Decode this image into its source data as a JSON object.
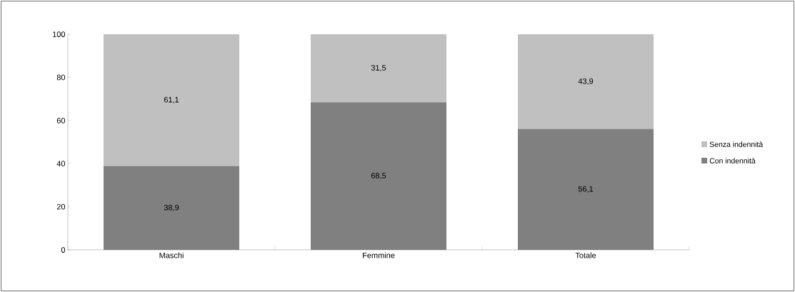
{
  "chart_data": {
    "type": "bar",
    "stacked": true,
    "categories": [
      "Maschi",
      "Femmine",
      "Totale"
    ],
    "series": [
      {
        "name": "Con indennità",
        "color": "#808080",
        "values": [
          38.9,
          68.5,
          56.1
        ],
        "value_labels": [
          "38,9",
          "68,5",
          "56,1"
        ]
      },
      {
        "name": "Senza indennità",
        "color": "#c0c0c0",
        "values": [
          61.1,
          31.5,
          43.9
        ],
        "value_labels": [
          "61,1",
          "31,5",
          "43,9"
        ]
      }
    ],
    "ylim": [
      0,
      100
    ],
    "yticks": [
      0,
      20,
      40,
      60,
      80,
      100
    ],
    "grid": false,
    "legend": "right"
  }
}
